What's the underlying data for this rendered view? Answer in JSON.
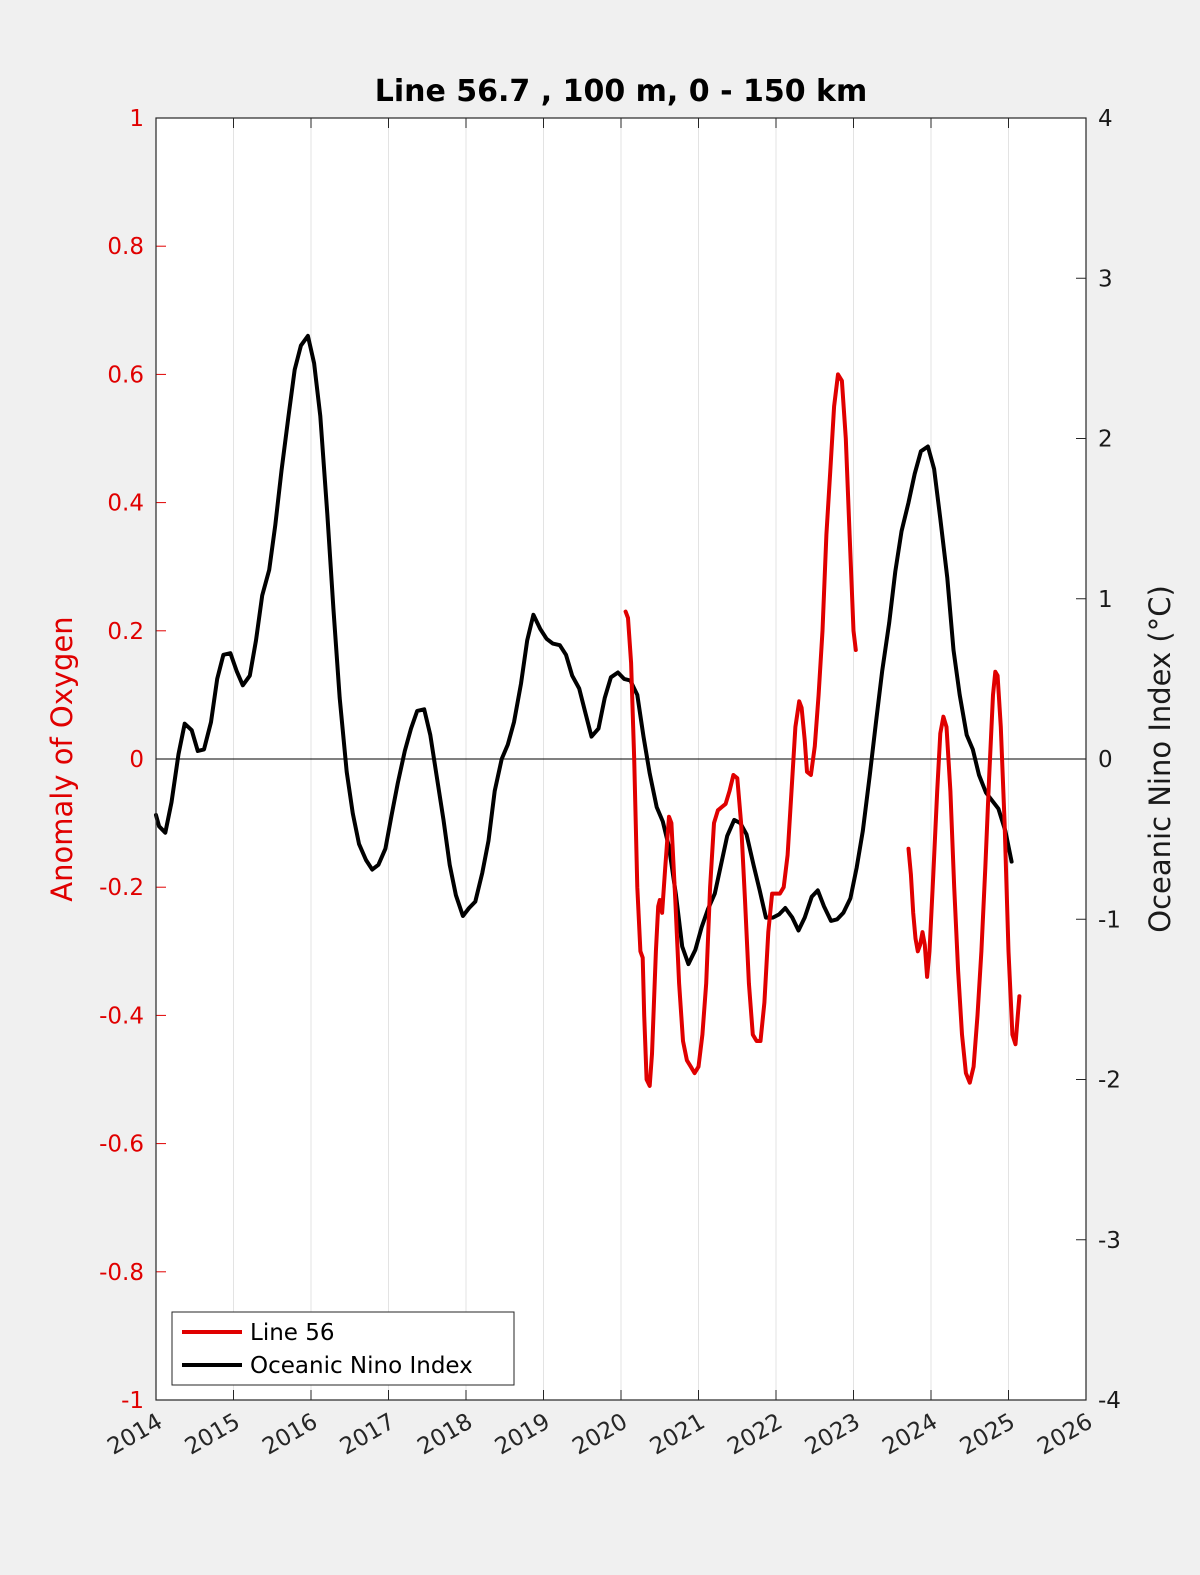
{
  "chart_data": {
    "type": "line",
    "title": "Line 56.7 , 100 m, 0 - 150 km",
    "xlabel": "",
    "ylabel_left": "Anomaly of Oxygen",
    "ylabel_right": "Oceanic Nino Index (°C)",
    "xlim": [
      2014,
      2026
    ],
    "ylim_left": [
      -1,
      1
    ],
    "ylim_right": [
      -4,
      4
    ],
    "x_ticks": [
      "2014",
      "2015",
      "2016",
      "2017",
      "2018",
      "2019",
      "2020",
      "2021",
      "2022",
      "2023",
      "2024",
      "2025",
      "2026"
    ],
    "y_left_ticks": [
      "-1",
      "-0.8",
      "-0.6",
      "-0.4",
      "-0.2",
      "0",
      "0.2",
      "0.4",
      "0.6",
      "0.8",
      "1"
    ],
    "y_right_ticks": [
      "-4",
      "-3",
      "-2",
      "-1",
      "0",
      "1",
      "2",
      "3",
      "4"
    ],
    "grid": "vertical",
    "legend_position": "bottom-left",
    "colors": {
      "line56": "#e00000",
      "oni": "#000000",
      "left_axis": "#e00000"
    },
    "series": [
      {
        "name": "Line 56",
        "axis": "left",
        "segments": [
          [
            [
              2020.06,
              0.23
            ],
            [
              2020.09,
              0.22
            ],
            [
              2020.13,
              0.15
            ],
            [
              2020.17,
              0.0
            ],
            [
              2020.21,
              -0.2
            ],
            [
              2020.25,
              -0.3
            ],
            [
              2020.28,
              -0.31
            ],
            [
              2020.3,
              -0.4
            ],
            [
              2020.33,
              -0.5
            ],
            [
              2020.37,
              -0.51
            ],
            [
              2020.4,
              -0.46
            ],
            [
              2020.45,
              -0.3
            ],
            [
              2020.48,
              -0.23
            ],
            [
              2020.5,
              -0.22
            ],
            [
              2020.53,
              -0.24
            ],
            [
              2020.57,
              -0.17
            ],
            [
              2020.62,
              -0.09
            ],
            [
              2020.65,
              -0.1
            ],
            [
              2020.7,
              -0.22
            ],
            [
              2020.75,
              -0.35
            ],
            [
              2020.8,
              -0.44
            ],
            [
              2020.85,
              -0.47
            ],
            [
              2020.9,
              -0.48
            ],
            [
              2020.95,
              -0.49
            ],
            [
              2021.0,
              -0.48
            ],
            [
              2021.05,
              -0.43
            ],
            [
              2021.1,
              -0.35
            ],
            [
              2021.15,
              -0.2
            ],
            [
              2021.2,
              -0.1
            ],
            [
              2021.25,
              -0.08
            ],
            [
              2021.3,
              -0.075
            ],
            [
              2021.35,
              -0.07
            ],
            [
              2021.4,
              -0.05
            ],
            [
              2021.45,
              -0.025
            ],
            [
              2021.5,
              -0.03
            ],
            [
              2021.55,
              -0.1
            ],
            [
              2021.6,
              -0.22
            ],
            [
              2021.65,
              -0.35
            ],
            [
              2021.7,
              -0.43
            ],
            [
              2021.75,
              -0.44
            ],
            [
              2021.8,
              -0.44
            ],
            [
              2021.85,
              -0.38
            ],
            [
              2021.9,
              -0.27
            ],
            [
              2021.95,
              -0.21
            ],
            [
              2022.0,
              -0.21
            ],
            [
              2022.05,
              -0.21
            ],
            [
              2022.1,
              -0.2
            ],
            [
              2022.15,
              -0.15
            ],
            [
              2022.2,
              -0.05
            ],
            [
              2022.25,
              0.05
            ],
            [
              2022.3,
              0.09
            ],
            [
              2022.33,
              0.08
            ],
            [
              2022.37,
              0.03
            ],
            [
              2022.4,
              -0.02
            ],
            [
              2022.45,
              -0.025
            ],
            [
              2022.5,
              0.02
            ],
            [
              2022.55,
              0.1
            ],
            [
              2022.6,
              0.2
            ],
            [
              2022.65,
              0.35
            ],
            [
              2022.7,
              0.45
            ],
            [
              2022.75,
              0.55
            ],
            [
              2022.8,
              0.6
            ],
            [
              2022.85,
              0.59
            ],
            [
              2022.9,
              0.5
            ],
            [
              2022.95,
              0.35
            ],
            [
              2023.0,
              0.2
            ],
            [
              2023.03,
              0.17
            ]
          ],
          [
            [
              2023.71,
              -0.14
            ],
            [
              2023.74,
              -0.18
            ],
            [
              2023.77,
              -0.24
            ],
            [
              2023.8,
              -0.28
            ],
            [
              2023.83,
              -0.3
            ],
            [
              2023.86,
              -0.29
            ],
            [
              2023.89,
              -0.27
            ],
            [
              2023.92,
              -0.29
            ],
            [
              2023.95,
              -0.34
            ],
            [
              2023.98,
              -0.3
            ],
            [
              2024.03,
              -0.18
            ],
            [
              2024.08,
              -0.05
            ],
            [
              2024.12,
              0.04
            ],
            [
              2024.16,
              0.066
            ],
            [
              2024.2,
              0.05
            ],
            [
              2024.25,
              -0.05
            ],
            [
              2024.3,
              -0.2
            ],
            [
              2024.35,
              -0.33
            ],
            [
              2024.4,
              -0.43
            ],
            [
              2024.45,
              -0.49
            ],
            [
              2024.5,
              -0.505
            ],
            [
              2024.55,
              -0.48
            ],
            [
              2024.6,
              -0.4
            ],
            [
              2024.65,
              -0.3
            ],
            [
              2024.7,
              -0.17
            ],
            [
              2024.75,
              -0.03
            ],
            [
              2024.8,
              0.1
            ],
            [
              2024.83,
              0.136
            ],
            [
              2024.86,
              0.13
            ],
            [
              2024.9,
              0.05
            ],
            [
              2024.95,
              -0.1
            ],
            [
              2025.0,
              -0.3
            ],
            [
              2025.05,
              -0.43
            ],
            [
              2025.09,
              -0.445
            ],
            [
              2025.12,
              -0.4
            ],
            [
              2025.14,
              -0.37
            ]
          ]
        ]
      },
      {
        "name": "Oceanic Nino Index",
        "axis": "right",
        "segments": [
          [
            [
              2014.0,
              -0.35
            ],
            [
              2014.04,
              -0.42
            ],
            [
              2014.12,
              -0.46
            ],
            [
              2014.2,
              -0.27
            ],
            [
              2014.29,
              0.03
            ],
            [
              2014.37,
              0.22
            ],
            [
              2014.46,
              0.18
            ],
            [
              2014.54,
              0.05
            ],
            [
              2014.62,
              0.06
            ],
            [
              2014.71,
              0.23
            ],
            [
              2014.79,
              0.5
            ],
            [
              2014.87,
              0.65
            ],
            [
              2014.96,
              0.66
            ],
            [
              2015.04,
              0.55
            ],
            [
              2015.12,
              0.46
            ],
            [
              2015.21,
              0.52
            ],
            [
              2015.29,
              0.74
            ],
            [
              2015.37,
              1.02
            ],
            [
              2015.46,
              1.18
            ],
            [
              2015.54,
              1.46
            ],
            [
              2015.62,
              1.8
            ],
            [
              2015.71,
              2.14
            ],
            [
              2015.79,
              2.43
            ],
            [
              2015.87,
              2.58
            ],
            [
              2015.96,
              2.64
            ],
            [
              2016.04,
              2.47
            ],
            [
              2016.12,
              2.14
            ],
            [
              2016.21,
              1.53
            ],
            [
              2016.29,
              0.93
            ],
            [
              2016.37,
              0.38
            ],
            [
              2016.46,
              -0.08
            ],
            [
              2016.54,
              -0.34
            ],
            [
              2016.62,
              -0.53
            ],
            [
              2016.71,
              -0.63
            ],
            [
              2016.79,
              -0.69
            ],
            [
              2016.87,
              -0.66
            ],
            [
              2016.96,
              -0.56
            ],
            [
              2017.04,
              -0.35
            ],
            [
              2017.12,
              -0.15
            ],
            [
              2017.21,
              0.05
            ],
            [
              2017.29,
              0.19
            ],
            [
              2017.37,
              0.3
            ],
            [
              2017.46,
              0.31
            ],
            [
              2017.54,
              0.15
            ],
            [
              2017.62,
              -0.1
            ],
            [
              2017.71,
              -0.38
            ],
            [
              2017.79,
              -0.66
            ],
            [
              2017.87,
              -0.85
            ],
            [
              2017.96,
              -0.98
            ],
            [
              2018.04,
              -0.93
            ],
            [
              2018.12,
              -0.89
            ],
            [
              2018.21,
              -0.71
            ],
            [
              2018.29,
              -0.51
            ],
            [
              2018.37,
              -0.2
            ],
            [
              2018.46,
              0.0
            ],
            [
              2018.54,
              0.09
            ],
            [
              2018.62,
              0.23
            ],
            [
              2018.71,
              0.47
            ],
            [
              2018.79,
              0.74
            ],
            [
              2018.87,
              0.9
            ],
            [
              2018.96,
              0.81
            ],
            [
              2019.04,
              0.75
            ],
            [
              2019.12,
              0.72
            ],
            [
              2019.21,
              0.71
            ],
            [
              2019.29,
              0.65
            ],
            [
              2019.37,
              0.52
            ],
            [
              2019.46,
              0.44
            ],
            [
              2019.54,
              0.29
            ],
            [
              2019.62,
              0.14
            ],
            [
              2019.71,
              0.19
            ],
            [
              2019.79,
              0.38
            ],
            [
              2019.87,
              0.51
            ],
            [
              2019.96,
              0.54
            ],
            [
              2020.04,
              0.5
            ],
            [
              2020.12,
              0.49
            ],
            [
              2020.21,
              0.4
            ],
            [
              2020.29,
              0.14
            ],
            [
              2020.37,
              -0.09
            ],
            [
              2020.46,
              -0.3
            ],
            [
              2020.54,
              -0.39
            ],
            [
              2020.62,
              -0.55
            ],
            [
              2020.71,
              -0.85
            ],
            [
              2020.79,
              -1.17
            ],
            [
              2020.87,
              -1.28
            ],
            [
              2020.96,
              -1.19
            ],
            [
              2021.04,
              -1.05
            ],
            [
              2021.12,
              -0.94
            ],
            [
              2021.21,
              -0.84
            ],
            [
              2021.29,
              -0.66
            ],
            [
              2021.37,
              -0.48
            ],
            [
              2021.46,
              -0.38
            ],
            [
              2021.54,
              -0.4
            ],
            [
              2021.62,
              -0.47
            ],
            [
              2021.71,
              -0.66
            ],
            [
              2021.79,
              -0.82
            ],
            [
              2021.87,
              -0.99
            ],
            [
              2021.96,
              -0.99
            ],
            [
              2022.04,
              -0.97
            ],
            [
              2022.12,
              -0.93
            ],
            [
              2022.21,
              -0.99
            ],
            [
              2022.29,
              -1.07
            ],
            [
              2022.37,
              -0.99
            ],
            [
              2022.46,
              -0.86
            ],
            [
              2022.54,
              -0.82
            ],
            [
              2022.62,
              -0.92
            ],
            [
              2022.71,
              -1.01
            ],
            [
              2022.79,
              -1.0
            ],
            [
              2022.87,
              -0.96
            ],
            [
              2022.96,
              -0.87
            ],
            [
              2023.04,
              -0.68
            ],
            [
              2023.12,
              -0.45
            ],
            [
              2023.21,
              -0.1
            ],
            [
              2023.29,
              0.23
            ],
            [
              2023.37,
              0.55
            ],
            [
              2023.46,
              0.85
            ],
            [
              2023.54,
              1.17
            ],
            [
              2023.62,
              1.42
            ],
            [
              2023.71,
              1.6
            ],
            [
              2023.79,
              1.78
            ],
            [
              2023.87,
              1.92
            ],
            [
              2023.96,
              1.95
            ],
            [
              2024.04,
              1.81
            ],
            [
              2024.12,
              1.5
            ],
            [
              2024.21,
              1.13
            ],
            [
              2024.29,
              0.68
            ],
            [
              2024.37,
              0.4
            ],
            [
              2024.46,
              0.15
            ],
            [
              2024.54,
              0.06
            ],
            [
              2024.62,
              -0.1
            ],
            [
              2024.71,
              -0.21
            ],
            [
              2024.79,
              -0.26
            ],
            [
              2024.87,
              -0.31
            ],
            [
              2024.96,
              -0.45
            ],
            [
              2025.04,
              -0.64
            ]
          ]
        ]
      }
    ]
  }
}
